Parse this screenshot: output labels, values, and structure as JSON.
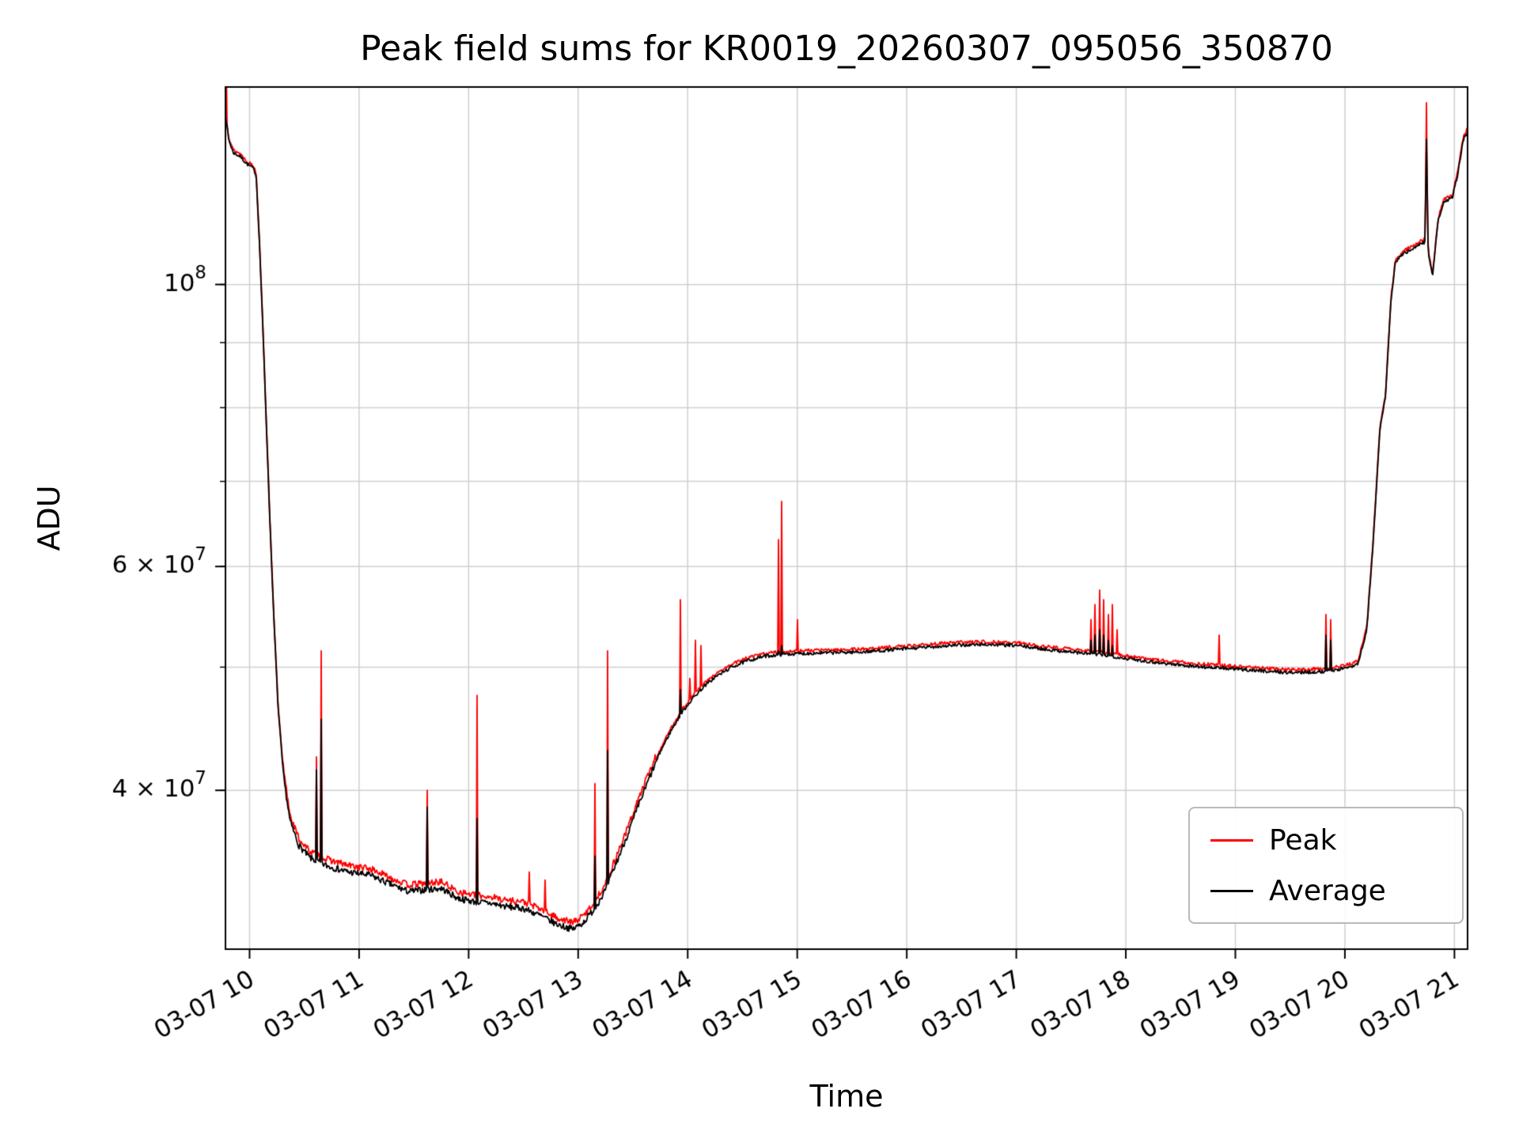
{
  "chart_data": {
    "type": "line",
    "title": "Peak field sums for KR0019_20260307_095056_350870",
    "xlabel": "Time",
    "ylabel": "ADU",
    "yscale": "log",
    "grid": true,
    "xlim": [
      9.78,
      21.12
    ],
    "ylim": [
      30000000.0,
      143000000.0
    ],
    "xticks": [
      {
        "value": 10,
        "label": "03-07 10"
      },
      {
        "value": 11,
        "label": "03-07 11"
      },
      {
        "value": 12,
        "label": "03-07 12"
      },
      {
        "value": 13,
        "label": "03-07 13"
      },
      {
        "value": 14,
        "label": "03-07 14"
      },
      {
        "value": 15,
        "label": "03-07 15"
      },
      {
        "value": 16,
        "label": "03-07 16"
      },
      {
        "value": 17,
        "label": "03-07 17"
      },
      {
        "value": 18,
        "label": "03-07 18"
      },
      {
        "value": 19,
        "label": "03-07 19"
      },
      {
        "value": 20,
        "label": "03-07 20"
      },
      {
        "value": 21,
        "label": "03-07 21"
      }
    ],
    "yticks": [
      {
        "value": 40000000.0,
        "mantissa": "4 × 10",
        "exponent": "7"
      },
      {
        "value": 60000000.0,
        "mantissa": "6 × 10",
        "exponent": "7"
      },
      {
        "value": 100000000.0,
        "mantissa": "10",
        "exponent": "8"
      }
    ],
    "grid_y": [
      40000000.0,
      50000000.0,
      60000000.0,
      70000000.0,
      80000000.0,
      90000000.0,
      100000000.0
    ],
    "legend": {
      "position": "lower right",
      "entries": [
        {
          "label": "Peak",
          "color": "#ff0000"
        },
        {
          "label": "Average",
          "color": "#000000"
        }
      ]
    },
    "series": [
      {
        "name": "Peak",
        "color": "#ff0000"
      },
      {
        "name": "Average",
        "color": "#000000"
      }
    ],
    "baseline_anchors": [
      [
        9.78,
        136000000.0
      ],
      [
        9.81,
        130000000.0
      ],
      [
        9.85,
        127000000.0
      ],
      [
        9.92,
        126000000.0
      ],
      [
        9.97,
        124500000.0
      ],
      [
        10.03,
        123500000.0
      ],
      [
        10.06,
        122000000.0
      ],
      [
        10.09,
        108000000.0
      ],
      [
        10.12,
        93000000.0
      ],
      [
        10.15,
        79000000.0
      ],
      [
        10.18,
        67000000.0
      ],
      [
        10.22,
        55000000.0
      ],
      [
        10.26,
        46500000.0
      ],
      [
        10.31,
        41000000.0
      ],
      [
        10.37,
        37800000.0
      ],
      [
        10.45,
        36200000.0
      ],
      [
        10.55,
        35400000.0
      ],
      [
        10.7,
        34900000.0
      ],
      [
        10.9,
        34500000.0
      ],
      [
        11.1,
        34300000.0
      ],
      [
        11.3,
        33700000.0
      ],
      [
        11.45,
        33300000.0
      ],
      [
        11.6,
        33400000.0
      ],
      [
        11.75,
        33500000.0
      ],
      [
        11.9,
        32900000.0
      ],
      [
        12.05,
        32700000.0
      ],
      [
        12.2,
        32600000.0
      ],
      [
        12.35,
        32400000.0
      ],
      [
        12.5,
        32300000.0
      ],
      [
        12.65,
        31900000.0
      ],
      [
        12.8,
        31400000.0
      ],
      [
        12.95,
        31100000.0
      ],
      [
        13.05,
        31500000.0
      ],
      [
        13.15,
        32300000.0
      ],
      [
        13.25,
        33400000.0
      ],
      [
        13.35,
        35100000.0
      ],
      [
        13.45,
        36900000.0
      ],
      [
        13.55,
        38900000.0
      ],
      [
        13.65,
        40900000.0
      ],
      [
        13.75,
        42900000.0
      ],
      [
        13.85,
        44600000.0
      ],
      [
        13.95,
        46100000.0
      ],
      [
        14.05,
        47300000.0
      ],
      [
        14.15,
        48300000.0
      ],
      [
        14.25,
        49100000.0
      ],
      [
        14.4,
        50000000.0
      ],
      [
        14.55,
        50600000.0
      ],
      [
        14.7,
        51000000.0
      ],
      [
        14.9,
        51200000.0
      ],
      [
        15.2,
        51300000.0
      ],
      [
        15.6,
        51400000.0
      ],
      [
        16.0,
        51700000.0
      ],
      [
        16.4,
        52000000.0
      ],
      [
        16.7,
        52100000.0
      ],
      [
        17.0,
        52000000.0
      ],
      [
        17.3,
        51600000.0
      ],
      [
        17.6,
        51300000.0
      ],
      [
        17.8,
        51100000.0
      ],
      [
        18.0,
        50800000.0
      ],
      [
        18.3,
        50400000.0
      ],
      [
        18.6,
        50100000.0
      ],
      [
        18.9,
        49900000.0
      ],
      [
        19.2,
        49700000.0
      ],
      [
        19.5,
        49500000.0
      ],
      [
        19.8,
        49600000.0
      ],
      [
        20.0,
        49900000.0
      ],
      [
        20.12,
        50300000.0
      ],
      [
        20.2,
        53500000.0
      ],
      [
        20.26,
        63000000.0
      ],
      [
        20.32,
        77000000.0
      ],
      [
        20.37,
        81500000.0
      ],
      [
        20.42,
        97000000.0
      ],
      [
        20.46,
        104000000.0
      ],
      [
        20.52,
        105500000.0
      ],
      [
        20.6,
        106500000.0
      ],
      [
        20.68,
        107500000.0
      ],
      [
        20.73,
        108000000.0
      ],
      [
        20.745,
        131000000.0
      ],
      [
        20.76,
        106000000.0
      ],
      [
        20.8,
        101500000.0
      ],
      [
        20.85,
        112000000.0
      ],
      [
        20.9,
        116000000.0
      ],
      [
        20.98,
        117000000.0
      ],
      [
        21.03,
        122000000.0
      ],
      [
        21.08,
        130000000.0
      ],
      [
        21.12,
        132000000.0
      ]
    ],
    "spikes": [
      {
        "t": 9.79,
        "peak": 150000000.0
      },
      {
        "t": 10.61,
        "peak": 42500000.0,
        "avg": 41500000.0
      },
      {
        "t": 10.655,
        "peak": 51500000.0,
        "avg": 45500000.0
      },
      {
        "t": 11.62,
        "peak": 40000000.0,
        "avg": 38800000.0
      },
      {
        "t": 12.08,
        "peak": 47500000.0,
        "avg": 38000000.0
      },
      {
        "t": 12.55,
        "peak": 34500000.0
      },
      {
        "t": 12.7,
        "peak": 34000000.0
      },
      {
        "t": 13.15,
        "peak": 40500000.0,
        "avg": 35500000.0
      },
      {
        "t": 13.27,
        "peak": 51500000.0,
        "avg": 43000000.0
      },
      {
        "t": 13.93,
        "peak": 56500000.0,
        "avg": 48000000.0
      },
      {
        "t": 14.02,
        "peak": 49000000.0
      },
      {
        "t": 14.07,
        "peak": 52500000.0
      },
      {
        "t": 14.12,
        "peak": 52000000.0
      },
      {
        "t": 14.83,
        "peak": 63000000.0,
        "avg": 51500000.0
      },
      {
        "t": 14.86,
        "peak": 67500000.0,
        "avg": 52000000.0
      },
      {
        "t": 15.0,
        "peak": 54500000.0
      },
      {
        "t": 17.68,
        "peak": 54500000.0,
        "avg": 52500000.0
      },
      {
        "t": 17.72,
        "peak": 56000000.0,
        "avg": 53000000.0
      },
      {
        "t": 17.76,
        "peak": 57500000.0,
        "avg": 53500000.0
      },
      {
        "t": 17.8,
        "peak": 56500000.0,
        "avg": 53000000.0
      },
      {
        "t": 17.84,
        "peak": 55000000.0,
        "avg": 52500000.0
      },
      {
        "t": 17.88,
        "peak": 56000000.0,
        "avg": 52000000.0
      },
      {
        "t": 17.92,
        "peak": 53500000.0
      },
      {
        "t": 18.85,
        "peak": 53000000.0
      },
      {
        "t": 19.83,
        "peak": 55000000.0,
        "avg": 53000000.0
      },
      {
        "t": 19.87,
        "peak": 54500000.0,
        "avg": 52500000.0
      },
      {
        "t": 20.745,
        "peak": 139000000.0
      }
    ]
  }
}
